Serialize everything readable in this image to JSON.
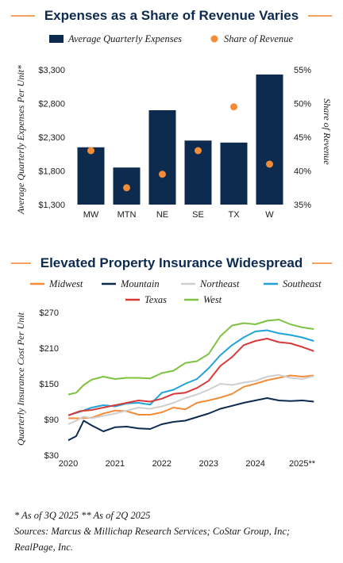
{
  "charts_meta": {
    "title1": "Expenses as a Share of Revenue Varies",
    "title2": "Elevated Property Insurance Widespread"
  },
  "chart_data": [
    {
      "type": "bar",
      "title": "Expenses as a Share of Revenue Varies",
      "categories": [
        "MW",
        "MTN",
        "NE",
        "SE",
        "TX",
        "W"
      ],
      "series": [
        {
          "name": "Average Quarterly Expenses",
          "type": "bar",
          "axis": "left",
          "color": "#0d2a4f",
          "values": [
            2150,
            1850,
            2700,
            2250,
            2220,
            3230
          ]
        },
        {
          "name": "Share of Revenue",
          "type": "scatter",
          "axis": "right",
          "color": "#f28c38",
          "values": [
            43.0,
            37.5,
            39.5,
            43.0,
            49.5,
            41.0
          ]
        }
      ],
      "ylabel": "Average Quarterly Expenses Per Unit*",
      "ylabel_right": "Share of Revenue",
      "ylim": [
        1300,
        3300
      ],
      "yticks": [
        "$1,300",
        "$1,800",
        "$2,300",
        "$2,800",
        "$3,300"
      ],
      "ylim_right": [
        35,
        55
      ],
      "yticks_right": [
        "35%",
        "40%",
        "45%",
        "50%",
        "55%"
      ],
      "legend": "top"
    },
    {
      "type": "line",
      "title": "Elevated Property Insurance Widespread",
      "ylabel": "Quarterly Insurance Cost Per Unit",
      "ylim": [
        30,
        270
      ],
      "yticks": [
        "$30",
        "$90",
        "$150",
        "$210",
        "$270"
      ],
      "xlim": [
        2020,
        2025.5
      ],
      "xticks": [
        "2020",
        "2021",
        "2022",
        "2023",
        "2024",
        "2025**"
      ],
      "legend": "top",
      "series": [
        {
          "name": "Midwest",
          "color": "#f28c38",
          "values": [
            [
              2020,
              92
            ],
            [
              2020.25,
              92
            ],
            [
              2020.5,
              93
            ],
            [
              2020.75,
              100
            ],
            [
              2021,
              105
            ],
            [
              2021.25,
              104
            ],
            [
              2021.5,
              98
            ],
            [
              2021.75,
              98
            ],
            [
              2022,
              102
            ],
            [
              2022.25,
              110
            ],
            [
              2022.5,
              107
            ],
            [
              2022.75,
              118
            ],
            [
              2023,
              122
            ],
            [
              2023.25,
              127
            ],
            [
              2023.5,
              133
            ],
            [
              2023.75,
              145
            ],
            [
              2024,
              150
            ],
            [
              2024.25,
              156
            ],
            [
              2024.5,
              160
            ],
            [
              2024.75,
              164
            ],
            [
              2025,
              162
            ],
            [
              2025.25,
              164
            ]
          ]
        },
        {
          "name": "Mountain",
          "color": "#0d2a4f",
          "values": [
            [
              2020,
              55
            ],
            [
              2020.17,
              62
            ],
            [
              2020.33,
              88
            ],
            [
              2020.5,
              80
            ],
            [
              2020.75,
              70
            ],
            [
              2021,
              77
            ],
            [
              2021.25,
              78
            ],
            [
              2021.5,
              75
            ],
            [
              2021.75,
              74
            ],
            [
              2022,
              82
            ],
            [
              2022.25,
              86
            ],
            [
              2022.5,
              88
            ],
            [
              2022.75,
              94
            ],
            [
              2023,
              100
            ],
            [
              2023.25,
              108
            ],
            [
              2023.5,
              113
            ],
            [
              2023.75,
              118
            ],
            [
              2024,
              122
            ],
            [
              2024.25,
              126
            ],
            [
              2024.5,
              122
            ],
            [
              2024.75,
              121
            ],
            [
              2025,
              122
            ],
            [
              2025.25,
              120
            ]
          ]
        },
        {
          "name": "Northeast",
          "color": "#cfcfcf",
          "values": [
            [
              2020,
              82
            ],
            [
              2020.17,
              88
            ],
            [
              2020.33,
              95
            ],
            [
              2020.5,
              92
            ],
            [
              2020.75,
              96
            ],
            [
              2021,
              100
            ],
            [
              2021.25,
              105
            ],
            [
              2021.5,
              110
            ],
            [
              2021.75,
              108
            ],
            [
              2022,
              112
            ],
            [
              2022.25,
              118
            ],
            [
              2022.5,
              126
            ],
            [
              2022.75,
              132
            ],
            [
              2023,
              140
            ],
            [
              2023.25,
              150
            ],
            [
              2023.5,
              148
            ],
            [
              2023.75,
              152
            ],
            [
              2024,
              155
            ],
            [
              2024.25,
              162
            ],
            [
              2024.5,
              165
            ],
            [
              2024.75,
              160
            ],
            [
              2025,
              158
            ],
            [
              2025.25,
              163
            ]
          ]
        },
        {
          "name": "Southeast",
          "color": "#1fa3d9",
          "values": [
            [
              2020,
              97
            ],
            [
              2020.25,
              103
            ],
            [
              2020.5,
              110
            ],
            [
              2020.75,
              114
            ],
            [
              2021,
              112
            ],
            [
              2021.25,
              117
            ],
            [
              2021.5,
              118
            ],
            [
              2021.75,
              115
            ],
            [
              2022,
              135
            ],
            [
              2022.25,
              140
            ],
            [
              2022.5,
              150
            ],
            [
              2022.75,
              158
            ],
            [
              2023,
              176
            ],
            [
              2023.25,
              198
            ],
            [
              2023.5,
              215
            ],
            [
              2023.75,
              228
            ],
            [
              2024,
              238
            ],
            [
              2024.25,
              240
            ],
            [
              2024.5,
              235
            ],
            [
              2024.75,
              232
            ],
            [
              2025,
              228
            ],
            [
              2025.25,
              222
            ]
          ]
        },
        {
          "name": "Texas",
          "color": "#d83a3a",
          "values": [
            [
              2020,
              97
            ],
            [
              2020.25,
              104
            ],
            [
              2020.5,
              106
            ],
            [
              2020.75,
              110
            ],
            [
              2021,
              114
            ],
            [
              2021.25,
              118
            ],
            [
              2021.5,
              122
            ],
            [
              2021.75,
              120
            ],
            [
              2022,
              125
            ],
            [
              2022.25,
              133
            ],
            [
              2022.5,
              135
            ],
            [
              2022.75,
              143
            ],
            [
              2023,
              155
            ],
            [
              2023.25,
              180
            ],
            [
              2023.5,
              195
            ],
            [
              2023.75,
              215
            ],
            [
              2024,
              222
            ],
            [
              2024.25,
              226
            ],
            [
              2024.5,
              220
            ],
            [
              2024.75,
              218
            ],
            [
              2025,
              212
            ],
            [
              2025.25,
              205
            ]
          ]
        },
        {
          "name": "West",
          "color": "#7fc241",
          "values": [
            [
              2020,
              132
            ],
            [
              2020.17,
              135
            ],
            [
              2020.33,
              148
            ],
            [
              2020.5,
              157
            ],
            [
              2020.75,
              162
            ],
            [
              2021,
              158
            ],
            [
              2021.25,
              160
            ],
            [
              2021.5,
              160
            ],
            [
              2021.75,
              159
            ],
            [
              2022,
              168
            ],
            [
              2022.25,
              172
            ],
            [
              2022.5,
              185
            ],
            [
              2022.75,
              188
            ],
            [
              2023,
              200
            ],
            [
              2023.25,
              230
            ],
            [
              2023.5,
              248
            ],
            [
              2023.75,
              252
            ],
            [
              2024,
              250
            ],
            [
              2024.25,
              256
            ],
            [
              2024.5,
              258
            ],
            [
              2024.75,
              250
            ],
            [
              2025,
              245
            ],
            [
              2025.25,
              242
            ]
          ]
        }
      ]
    }
  ],
  "footnotes": {
    "line1": "* As of 3Q 2025 ** As of 2Q 2025",
    "line2": "Sources: Marcus & Millichap Research Services; CoStar Group, Inc;",
    "line3": "RealPage, Inc."
  }
}
